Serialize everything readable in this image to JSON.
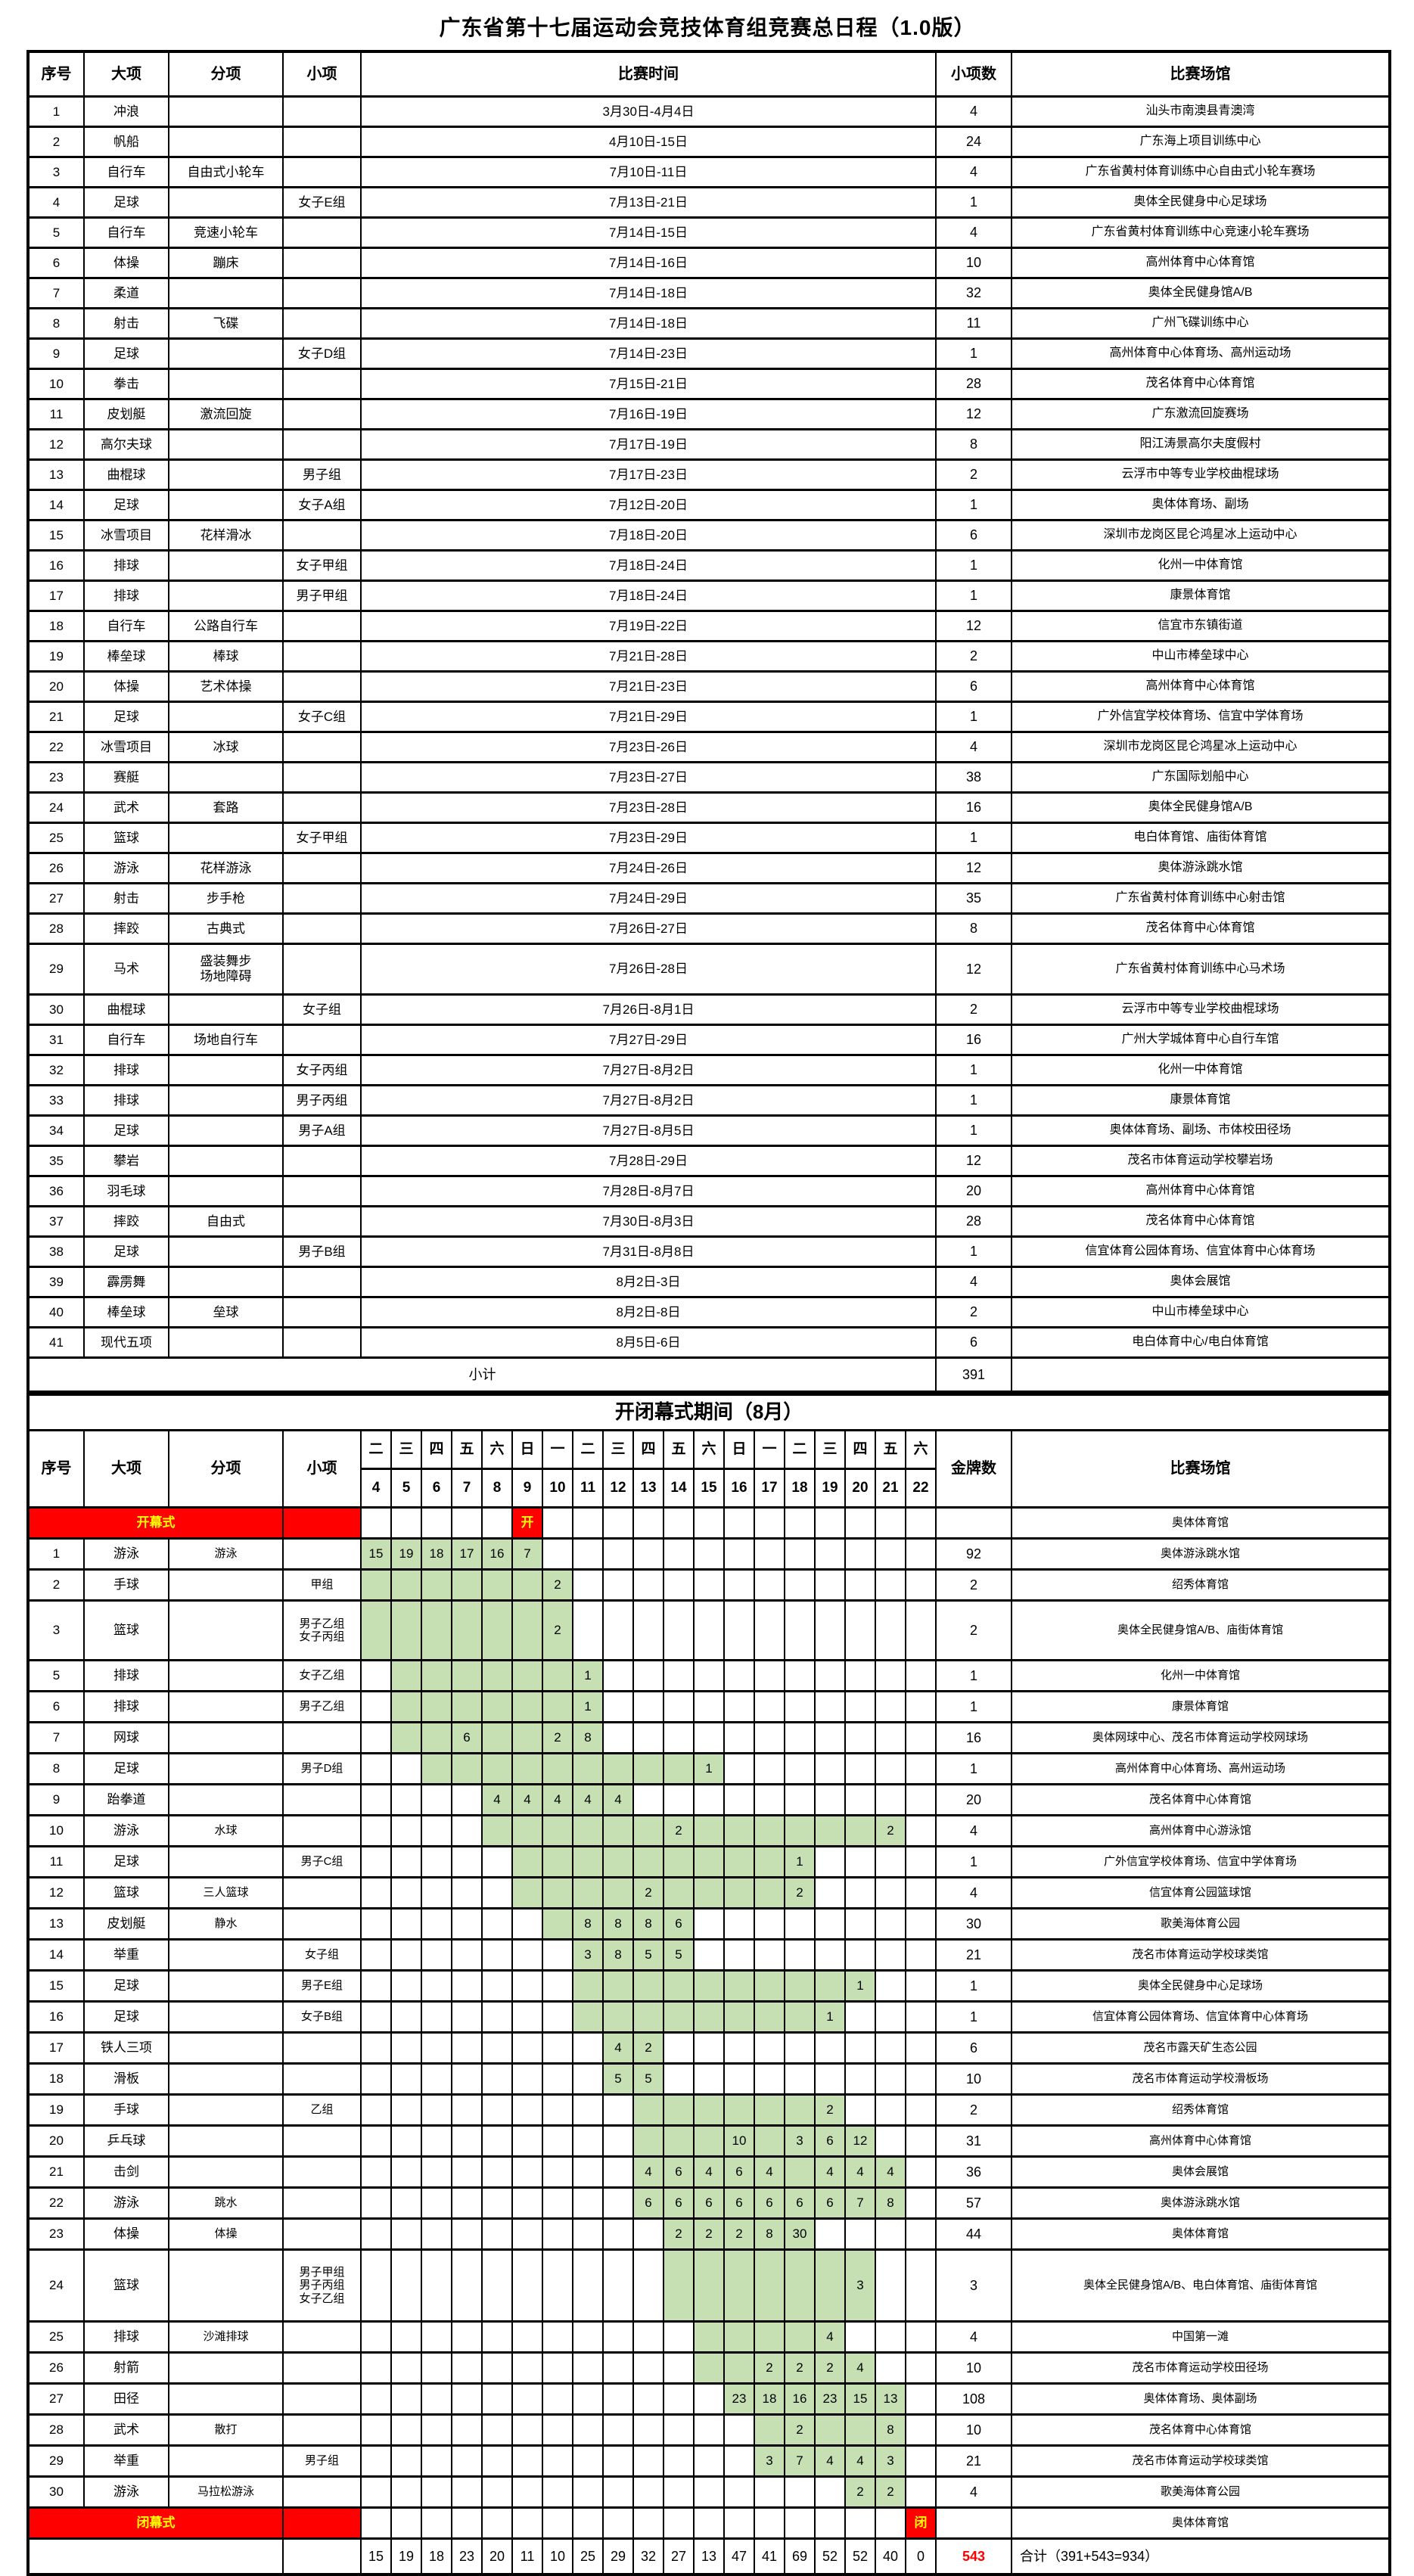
{
  "title": "广东省第十七届运动会竞技体育组竞赛总日程（1.0版）",
  "colors": {
    "green": "#c6e0b4",
    "red": "#ff0000",
    "yellow": "#ffff00",
    "grid": "#000000"
  },
  "table1": {
    "headers": [
      "序号",
      "大项",
      "分项",
      "小项",
      "比赛时间",
      "小项数",
      "比赛场馆"
    ],
    "rows": [
      [
        "1",
        "冲浪",
        "",
        "",
        "3月30日-4月4日",
        "4",
        "汕头市南澳县青澳湾"
      ],
      [
        "2",
        "帆船",
        "",
        "",
        "4月10日-15日",
        "24",
        "广东海上项目训练中心"
      ],
      [
        "3",
        "自行车",
        "自由式小轮车",
        "",
        "7月10日-11日",
        "4",
        "广东省黄村体育训练中心自由式小轮车赛场"
      ],
      [
        "4",
        "足球",
        "",
        "女子E组",
        "7月13日-21日",
        "1",
        "奥体全民健身中心足球场"
      ],
      [
        "5",
        "自行车",
        "竞速小轮车",
        "",
        "7月14日-15日",
        "4",
        "广东省黄村体育训练中心竞速小轮车赛场"
      ],
      [
        "6",
        "体操",
        "蹦床",
        "",
        "7月14日-16日",
        "10",
        "高州体育中心体育馆"
      ],
      [
        "7",
        "柔道",
        "",
        "",
        "7月14日-18日",
        "32",
        "奥体全民健身馆A/B"
      ],
      [
        "8",
        "射击",
        "飞碟",
        "",
        "7月14日-18日",
        "11",
        "广州飞碟训练中心"
      ],
      [
        "9",
        "足球",
        "",
        "女子D组",
        "7月14日-23日",
        "1",
        "高州体育中心体育场、高州运动场"
      ],
      [
        "10",
        "拳击",
        "",
        "",
        "7月15日-21日",
        "28",
        "茂名体育中心体育馆"
      ],
      [
        "11",
        "皮划艇",
        "激流回旋",
        "",
        "7月16日-19日",
        "12",
        "广东激流回旋赛场"
      ],
      [
        "12",
        "高尔夫球",
        "",
        "",
        "7月17日-19日",
        "8",
        "阳江涛景高尔夫度假村"
      ],
      [
        "13",
        "曲棍球",
        "",
        "男子组",
        "7月17日-23日",
        "2",
        "云浮市中等专业学校曲棍球场"
      ],
      [
        "14",
        "足球",
        "",
        "女子A组",
        "7月12日-20日",
        "1",
        "奥体体育场、副场"
      ],
      [
        "15",
        "冰雪项目",
        "花样滑冰",
        "",
        "7月18日-20日",
        "6",
        "深圳市龙岗区昆仑鸿星冰上运动中心"
      ],
      [
        "16",
        "排球",
        "",
        "女子甲组",
        "7月18日-24日",
        "1",
        "化州一中体育馆"
      ],
      [
        "17",
        "排球",
        "",
        "男子甲组",
        "7月18日-24日",
        "1",
        "康景体育馆"
      ],
      [
        "18",
        "自行车",
        "公路自行车",
        "",
        "7月19日-22日",
        "12",
        "信宜市东镇街道"
      ],
      [
        "19",
        "棒垒球",
        "棒球",
        "",
        "7月21日-28日",
        "2",
        "中山市棒垒球中心"
      ],
      [
        "20",
        "体操",
        "艺术体操",
        "",
        "7月21日-23日",
        "6",
        "高州体育中心体育馆"
      ],
      [
        "21",
        "足球",
        "",
        "女子C组",
        "7月21日-29日",
        "1",
        "广外信宜学校体育场、信宜中学体育场"
      ],
      [
        "22",
        "冰雪项目",
        "冰球",
        "",
        "7月23日-26日",
        "4",
        "深圳市龙岗区昆仑鸿星冰上运动中心"
      ],
      [
        "23",
        "赛艇",
        "",
        "",
        "7月23日-27日",
        "38",
        "广东国际划船中心"
      ],
      [
        "24",
        "武术",
        "套路",
        "",
        "7月23日-28日",
        "16",
        "奥体全民健身馆A/B"
      ],
      [
        "25",
        "篮球",
        "",
        "女子甲组",
        "7月23日-29日",
        "1",
        "电白体育馆、庙街体育馆"
      ],
      [
        "26",
        "游泳",
        "花样游泳",
        "",
        "7月24日-26日",
        "12",
        "奥体游泳跳水馆"
      ],
      [
        "27",
        "射击",
        "步手枪",
        "",
        "7月24日-29日",
        "35",
        "广东省黄村体育训练中心射击馆"
      ],
      [
        "28",
        "摔跤",
        "古典式",
        "",
        "7月26日-27日",
        "8",
        "茂名体育中心体育馆"
      ],
      [
        "29",
        "马术",
        "盛装舞步\n场地障碍",
        "",
        "7月26日-28日",
        "12",
        "广东省黄村体育训练中心马术场"
      ],
      [
        "30",
        "曲棍球",
        "",
        "女子组",
        "7月26日-8月1日",
        "2",
        "云浮市中等专业学校曲棍球场"
      ],
      [
        "31",
        "自行车",
        "场地自行车",
        "",
        "7月27日-29日",
        "16",
        "广州大学城体育中心自行车馆"
      ],
      [
        "32",
        "排球",
        "",
        "女子丙组",
        "7月27日-8月2日",
        "1",
        "化州一中体育馆"
      ],
      [
        "33",
        "排球",
        "",
        "男子丙组",
        "7月27日-8月2日",
        "1",
        "康景体育馆"
      ],
      [
        "34",
        "足球",
        "",
        "男子A组",
        "7月27日-8月5日",
        "1",
        "奥体体育场、副场、市体校田径场"
      ],
      [
        "35",
        "攀岩",
        "",
        "",
        "7月28日-29日",
        "12",
        "茂名市体育运动学校攀岩场"
      ],
      [
        "36",
        "羽毛球",
        "",
        "",
        "7月28日-8月7日",
        "20",
        "高州体育中心体育馆"
      ],
      [
        "37",
        "摔跤",
        "自由式",
        "",
        "7月30日-8月3日",
        "28",
        "茂名体育中心体育馆"
      ],
      [
        "38",
        "足球",
        "",
        "男子B组",
        "7月31日-8月8日",
        "1",
        "信宜体育公园体育场、信宜体育中心体育场"
      ],
      [
        "39",
        "霹雳舞",
        "",
        "",
        "8月2日-3日",
        "4",
        "奥体会展馆"
      ],
      [
        "40",
        "棒垒球",
        "垒球",
        "",
        "8月2日-8日",
        "2",
        "中山市棒垒球中心"
      ],
      [
        "41",
        "现代五项",
        "",
        "",
        "8月5日-6日",
        "6",
        "电白体育中心/电白体育馆"
      ]
    ],
    "subtotal": {
      "label": "小计",
      "value": "391"
    }
  },
  "table2": {
    "title": "开闭幕式期间（8月）",
    "label_headers": [
      "序号",
      "大项",
      "分项",
      "小项"
    ],
    "gold_header": "金牌数",
    "venue_header": "比赛场馆",
    "weekdays": [
      "二",
      "三",
      "四",
      "五",
      "六",
      "日",
      "一",
      "二",
      "三",
      "四",
      "五",
      "六",
      "日",
      "一",
      "二",
      "三",
      "四",
      "五",
      "六"
    ],
    "dates": [
      "4",
      "5",
      "6",
      "7",
      "8",
      "9",
      "10",
      "11",
      "12",
      "13",
      "14",
      "15",
      "16",
      "17",
      "18",
      "19",
      "20",
      "21",
      "22"
    ],
    "opening": {
      "label": "开幕式",
      "mark": "开",
      "mark_day": 9,
      "gold": "",
      "venue": "奥体体育馆"
    },
    "rows": [
      {
        "no": "1",
        "sport": "游泳",
        "branch": "游泳",
        "group": "",
        "start": 4,
        "end": 9,
        "cells": {
          "4": "15",
          "5": "19",
          "6": "18",
          "7": "17",
          "8": "16",
          "9": "7"
        },
        "gold": "92",
        "venue": "奥体游泳跳水馆"
      },
      {
        "no": "2",
        "sport": "手球",
        "branch": "",
        "group": "甲组",
        "start": 4,
        "end": 10,
        "cells": {
          "10": "2"
        },
        "gold": "2",
        "venue": "绍秀体育馆"
      },
      {
        "no": "3",
        "sport": "篮球",
        "branch": "",
        "group": "男子乙组\n女子丙组",
        "start": 4,
        "end": 10,
        "cells": {
          "10": "2"
        },
        "gold": "2",
        "venue": "奥体全民健身馆A/B、庙街体育馆"
      },
      {
        "no": "5",
        "sport": "排球",
        "branch": "",
        "group": "女子乙组",
        "start": 5,
        "end": 11,
        "cells": {
          "11": "1"
        },
        "gold": "1",
        "venue": "化州一中体育馆"
      },
      {
        "no": "6",
        "sport": "排球",
        "branch": "",
        "group": "男子乙组",
        "start": 5,
        "end": 11,
        "cells": {
          "11": "1"
        },
        "gold": "1",
        "venue": "康景体育馆"
      },
      {
        "no": "7",
        "sport": "网球",
        "branch": "",
        "group": "",
        "start": 5,
        "end": 11,
        "cells": {
          "7": "6",
          "10": "2",
          "11": "8"
        },
        "gold": "16",
        "venue": "奥体网球中心、茂名市体育运动学校网球场"
      },
      {
        "no": "8",
        "sport": "足球",
        "branch": "",
        "group": "男子D组",
        "start": 6,
        "end": 15,
        "cells": {
          "15": "1"
        },
        "gold": "1",
        "venue": "高州体育中心体育场、高州运动场"
      },
      {
        "no": "9",
        "sport": "跆拳道",
        "branch": "",
        "group": "",
        "start": 8,
        "end": 12,
        "cells": {
          "8": "4",
          "9": "4",
          "10": "4",
          "11": "4",
          "12": "4"
        },
        "gold": "20",
        "venue": "茂名体育中心体育馆"
      },
      {
        "no": "10",
        "sport": "游泳",
        "branch": "水球",
        "group": "",
        "start": 8,
        "end": 21,
        "cells": {
          "14": "2",
          "21": "2"
        },
        "gold": "4",
        "venue": "高州体育中心游泳馆"
      },
      {
        "no": "11",
        "sport": "足球",
        "branch": "",
        "group": "男子C组",
        "start": 9,
        "end": 18,
        "cells": {
          "18": "1"
        },
        "gold": "1",
        "venue": "广外信宜学校体育场、信宜中学体育场"
      },
      {
        "no": "12",
        "sport": "篮球",
        "branch": "三人篮球",
        "group": "",
        "start": 9,
        "end": 18,
        "cells": {
          "13": "2",
          "18": "2"
        },
        "gold": "4",
        "venue": "信宜体育公园篮球馆"
      },
      {
        "no": "13",
        "sport": "皮划艇",
        "branch": "静水",
        "group": "",
        "start": 10,
        "end": 14,
        "cells": {
          "11": "8",
          "12": "8",
          "13": "8",
          "14": "6"
        },
        "gold": "30",
        "venue": "歌美海体育公园"
      },
      {
        "no": "14",
        "sport": "举重",
        "branch": "",
        "group": "女子组",
        "start": 11,
        "end": 14,
        "cells": {
          "11": "3",
          "12": "8",
          "13": "5",
          "14": "5"
        },
        "gold": "21",
        "venue": "茂名市体育运动学校球类馆"
      },
      {
        "no": "15",
        "sport": "足球",
        "branch": "",
        "group": "男子E组",
        "start": 11,
        "end": 20,
        "cells": {
          "20": "1"
        },
        "gold": "1",
        "venue": "奥体全民健身中心足球场"
      },
      {
        "no": "16",
        "sport": "足球",
        "branch": "",
        "group": "女子B组",
        "start": 11,
        "end": 19,
        "cells": {
          "19": "1"
        },
        "gold": "1",
        "venue": "信宜体育公园体育场、信宜体育中心体育场"
      },
      {
        "no": "17",
        "sport": "铁人三项",
        "branch": "",
        "group": "",
        "start": 12,
        "end": 13,
        "cells": {
          "12": "4",
          "13": "2"
        },
        "gold": "6",
        "venue": "茂名市露天矿生态公园"
      },
      {
        "no": "18",
        "sport": "滑板",
        "branch": "",
        "group": "",
        "start": 12,
        "end": 13,
        "cells": {
          "12": "5",
          "13": "5"
        },
        "gold": "10",
        "venue": "茂名市体育运动学校滑板场"
      },
      {
        "no": "19",
        "sport": "手球",
        "branch": "",
        "group": "乙组",
        "start": 13,
        "end": 19,
        "cells": {
          "19": "2"
        },
        "gold": "2",
        "venue": "绍秀体育馆"
      },
      {
        "no": "20",
        "sport": "乒乓球",
        "branch": "",
        "group": "",
        "start": 13,
        "end": 20,
        "cells": {
          "16": "10",
          "18": "3",
          "19": "6",
          "20": "12"
        },
        "gold": "31",
        "venue": "高州体育中心体育馆"
      },
      {
        "no": "21",
        "sport": "击剑",
        "branch": "",
        "group": "",
        "start": 13,
        "end": 21,
        "cells": {
          "13": "4",
          "14": "6",
          "15": "4",
          "16": "6",
          "17": "4",
          "19": "4",
          "20": "4",
          "21": "4"
        },
        "gold": "36",
        "venue": "奥体会展馆"
      },
      {
        "no": "22",
        "sport": "游泳",
        "branch": "跳水",
        "group": "",
        "start": 13,
        "end": 21,
        "cells": {
          "13": "6",
          "14": "6",
          "15": "6",
          "16": "6",
          "17": "6",
          "18": "6",
          "19": "6",
          "20": "7",
          "21": "8"
        },
        "gold": "57",
        "venue": "奥体游泳跳水馆"
      },
      {
        "no": "23",
        "sport": "体操",
        "branch": "体操",
        "group": "",
        "start": 14,
        "end": 18,
        "cells": {
          "14": "2",
          "15": "2",
          "16": "2",
          "17": "8",
          "18": "30"
        },
        "gold": "44",
        "venue": "奥体体育馆"
      },
      {
        "no": "24",
        "sport": "篮球",
        "branch": "",
        "group": "男子甲组\n男子丙组\n女子乙组",
        "start": 14,
        "end": 20,
        "cells": {
          "20": "3"
        },
        "gold": "3",
        "venue": "奥体全民健身馆A/B、电白体育馆、庙街体育馆"
      },
      {
        "no": "25",
        "sport": "排球",
        "branch": "沙滩排球",
        "group": "",
        "start": 15,
        "end": 19,
        "cells": {
          "19": "4"
        },
        "gold": "4",
        "venue": "中国第一滩"
      },
      {
        "no": "26",
        "sport": "射箭",
        "branch": "",
        "group": "",
        "start": 15,
        "end": 20,
        "cells": {
          "17": "2",
          "18": "2",
          "19": "2",
          "20": "4"
        },
        "gold": "10",
        "venue": "茂名市体育运动学校田径场"
      },
      {
        "no": "27",
        "sport": "田径",
        "branch": "",
        "group": "",
        "start": 16,
        "end": 21,
        "cells": {
          "16": "23",
          "17": "18",
          "18": "16",
          "19": "23",
          "20": "15",
          "21": "13"
        },
        "gold": "108",
        "venue": "奥体体育场、奥体副场"
      },
      {
        "no": "28",
        "sport": "武术",
        "branch": "散打",
        "group": "",
        "start": 17,
        "end": 21,
        "cells": {
          "18": "2",
          "21": "8"
        },
        "gold": "10",
        "venue": "茂名体育中心体育馆"
      },
      {
        "no": "29",
        "sport": "举重",
        "branch": "",
        "group": "男子组",
        "start": 17,
        "end": 21,
        "cells": {
          "17": "3",
          "18": "7",
          "19": "4",
          "20": "4",
          "21": "3"
        },
        "gold": "21",
        "venue": "茂名市体育运动学校球类馆"
      },
      {
        "no": "30",
        "sport": "游泳",
        "branch": "马拉松游泳",
        "group": "",
        "start": 20,
        "end": 21,
        "cells": {
          "20": "2",
          "21": "2"
        },
        "gold": "4",
        "venue": "歌美海体育公园"
      }
    ],
    "closing": {
      "label": "闭幕式",
      "mark": "闭",
      "mark_day": 22,
      "gold": "",
      "venue": "奥体体育馆"
    },
    "totals": {
      "values": [
        "15",
        "19",
        "18",
        "23",
        "20",
        "11",
        "10",
        "25",
        "29",
        "32",
        "27",
        "13",
        "47",
        "41",
        "69",
        "52",
        "52",
        "40",
        "0"
      ],
      "gold": "543",
      "note": "合计（391+543=934）"
    }
  }
}
